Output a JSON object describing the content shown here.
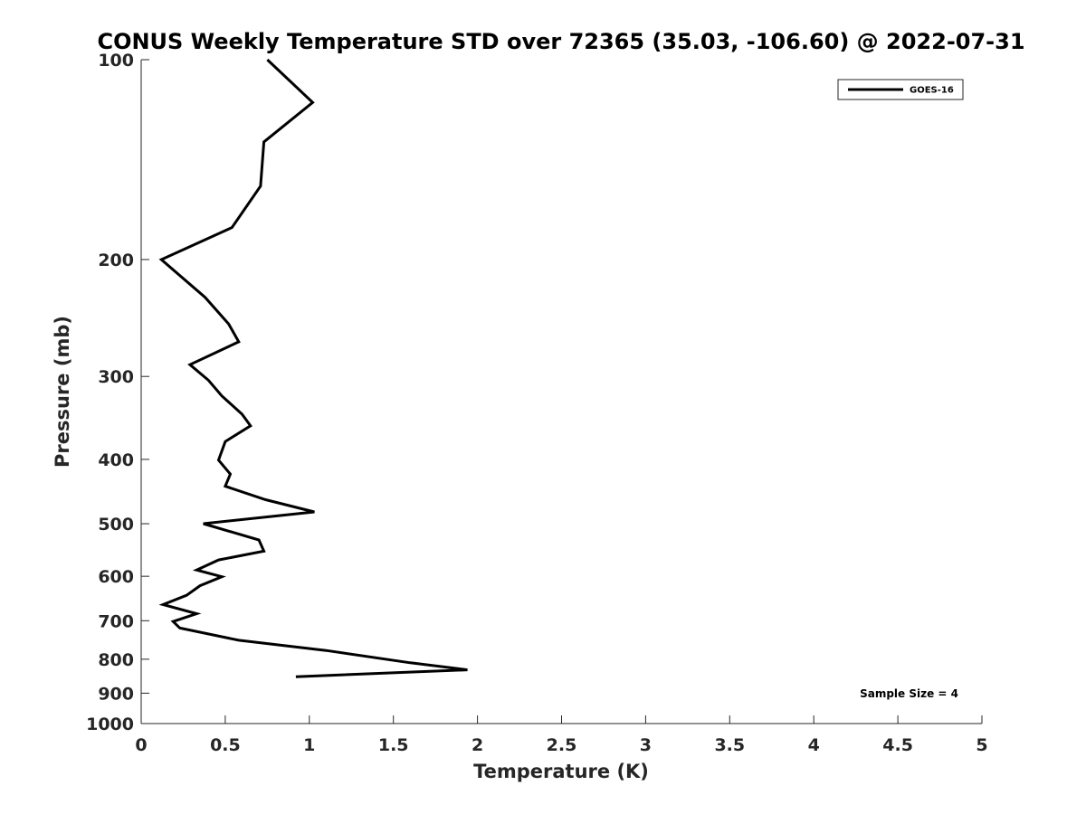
{
  "chart_data": {
    "type": "line",
    "title": "CONUS Weekly Temperature STD over 72365 (35.03, -106.60) @ 2022-07-31",
    "xlabel": "Temperature (K)",
    "ylabel": "Pressure (mb)",
    "xlim": [
      0,
      5
    ],
    "ylim": [
      100,
      1000
    ],
    "y_scale": "log",
    "y_reversed": true,
    "x_ticks": [
      0,
      0.5,
      1,
      1.5,
      2,
      2.5,
      3,
      3.5,
      4,
      4.5,
      5
    ],
    "x_tick_labels": [
      "0",
      "0.5",
      "1",
      "1.5",
      "2",
      "2.5",
      "3",
      "3.5",
      "4",
      "4.5",
      "5"
    ],
    "y_ticks": [
      100,
      200,
      300,
      400,
      500,
      600,
      700,
      800,
      900,
      1000
    ],
    "y_tick_labels": [
      "100",
      "200",
      "300",
      "400",
      "500",
      "600",
      "700",
      "800",
      "900",
      "1000"
    ],
    "grid": false,
    "legend_position": "top-right",
    "annotation": "Sample Size = 4",
    "series": [
      {
        "name": "GOES-16",
        "color": "#000000",
        "points": [
          {
            "x": 0.75,
            "y": 100
          },
          {
            "x": 1.02,
            "y": 116
          },
          {
            "x": 0.73,
            "y": 133
          },
          {
            "x": 0.71,
            "y": 155
          },
          {
            "x": 0.54,
            "y": 179
          },
          {
            "x": 0.12,
            "y": 200
          },
          {
            "x": 0.38,
            "y": 228
          },
          {
            "x": 0.52,
            "y": 250
          },
          {
            "x": 0.58,
            "y": 266
          },
          {
            "x": 0.29,
            "y": 288
          },
          {
            "x": 0.4,
            "y": 304
          },
          {
            "x": 0.48,
            "y": 321
          },
          {
            "x": 0.6,
            "y": 342
          },
          {
            "x": 0.65,
            "y": 356
          },
          {
            "x": 0.5,
            "y": 376
          },
          {
            "x": 0.46,
            "y": 401
          },
          {
            "x": 0.53,
            "y": 421
          },
          {
            "x": 0.5,
            "y": 439
          },
          {
            "x": 0.74,
            "y": 460
          },
          {
            "x": 1.03,
            "y": 480
          },
          {
            "x": 0.37,
            "y": 500
          },
          {
            "x": 0.7,
            "y": 529
          },
          {
            "x": 0.73,
            "y": 550
          },
          {
            "x": 0.46,
            "y": 567
          },
          {
            "x": 0.33,
            "y": 587
          },
          {
            "x": 0.48,
            "y": 601
          },
          {
            "x": 0.35,
            "y": 620
          },
          {
            "x": 0.27,
            "y": 641
          },
          {
            "x": 0.13,
            "y": 662
          },
          {
            "x": 0.33,
            "y": 683
          },
          {
            "x": 0.19,
            "y": 702
          },
          {
            "x": 0.23,
            "y": 718
          },
          {
            "x": 0.58,
            "y": 749
          },
          {
            "x": 1.1,
            "y": 776
          },
          {
            "x": 1.6,
            "y": 810
          },
          {
            "x": 1.94,
            "y": 830
          },
          {
            "x": 0.92,
            "y": 850
          }
        ]
      }
    ]
  }
}
